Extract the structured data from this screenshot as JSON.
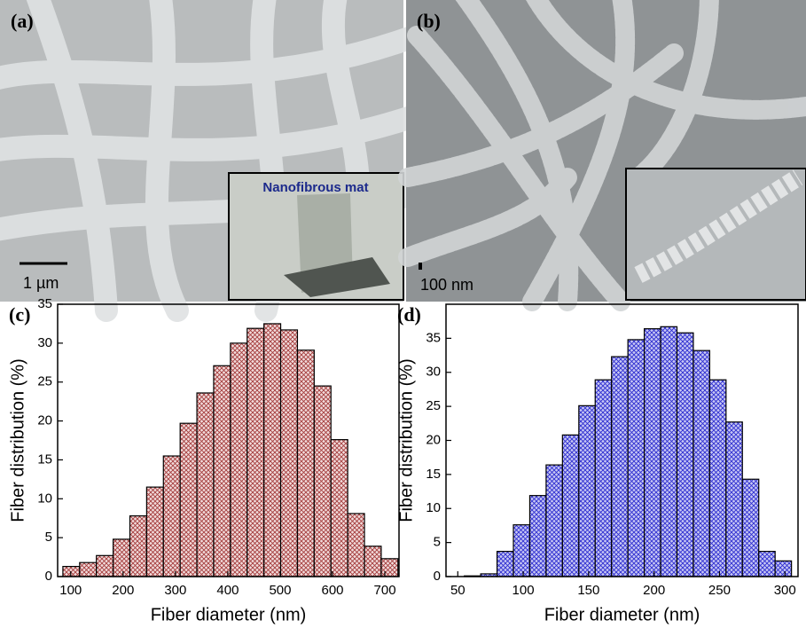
{
  "panels": [
    {
      "label": "(a)",
      "scale_bar": "1 µm",
      "inset_label": "Nanofibrous mat"
    },
    {
      "label": "(b)",
      "scale_bar": "100 nm"
    }
  ],
  "chart_data": [
    {
      "type": "histogram",
      "panel_label": "(c)",
      "x_label": "Fiber diameter (nm)",
      "y_label": "Fiber distribution (%)",
      "bins": [
        85,
        117,
        149,
        181,
        213,
        245,
        277,
        309,
        341,
        373,
        405,
        437,
        469,
        501,
        533,
        565,
        597,
        629,
        661,
        693,
        725
      ],
      "values": [
        1.3,
        1.8,
        2.7,
        4.8,
        7.8,
        11.5,
        15.5,
        19.7,
        23.6,
        27.1,
        30.0,
        31.9,
        32.5,
        31.7,
        29.1,
        24.5,
        17.6,
        8.1,
        3.9,
        2.3
      ],
      "color": "#c0504d",
      "fill": "#f2dcdc",
      "xlim": [
        75,
        727
      ],
      "xticks": [
        100,
        200,
        300,
        400,
        500,
        600,
        700
      ],
      "ylim": [
        0,
        35
      ],
      "yticks": [
        0,
        5,
        10,
        15,
        20,
        25,
        30,
        35
      ]
    },
    {
      "type": "histogram",
      "panel_label": "(d)",
      "x_label": "Fiber diameter (nm)",
      "y_label": "Fiber distribution (%)",
      "bins": [
        55,
        67.5,
        80,
        92.5,
        105,
        117.5,
        130,
        142.5,
        155,
        167.5,
        180,
        192.5,
        205,
        217.5,
        230,
        242.5,
        255,
        267.5,
        280,
        292.5,
        305
      ],
      "values": [
        0.1,
        0.4,
        3.7,
        7.6,
        11.9,
        16.4,
        20.8,
        25.1,
        28.9,
        32.3,
        34.8,
        36.4,
        36.7,
        35.8,
        33.2,
        28.9,
        22.7,
        14.3,
        3.7,
        2.3
      ],
      "color": "#2b2bd0",
      "fill": "#c8c8f4",
      "xlim": [
        41,
        310
      ],
      "xticks": [
        50,
        100,
        150,
        200,
        250,
        300
      ],
      "ylim": [
        0,
        40
      ],
      "yticks": [
        0,
        5,
        10,
        15,
        20,
        25,
        30,
        35
      ]
    }
  ]
}
